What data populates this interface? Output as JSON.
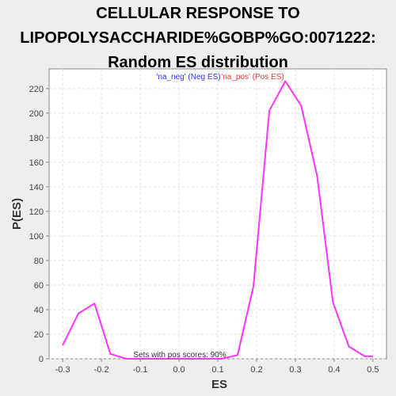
{
  "title_lines": [
    "CELLULAR RESPONSE TO",
    "LIPOPOLYSACCHARIDE%GOBP%GO:0071222:",
    "Random ES distribution"
  ],
  "chart_data": {
    "type": "line",
    "xlabel": "ES",
    "ylabel": "P(ES)",
    "xlim": [
      -0.335,
      0.535
    ],
    "ylim": [
      0,
      236
    ],
    "x_ticks": [
      -0.3,
      -0.2,
      -0.1,
      0.0,
      0.1,
      0.2,
      0.3,
      0.4,
      0.5
    ],
    "x_tick_labels": [
      "-0.3",
      "-0.2",
      "-0.1",
      "0.0",
      "0.1",
      "0.2",
      "0.3",
      "0.4",
      "0.5"
    ],
    "y_ticks": [
      0,
      20,
      40,
      60,
      80,
      100,
      120,
      140,
      160,
      180,
      200,
      220
    ],
    "y_tick_labels": [
      "0",
      "20",
      "40",
      "60",
      "80",
      "100",
      "120",
      "140",
      "160",
      "180",
      "200",
      "220"
    ],
    "grid": true,
    "legend_position": "top-center",
    "legend": [
      {
        "label": "'na_neg' (Neg ES)",
        "color": "#3333ff"
      },
      {
        "label": "'na_pos' (Pos ES)",
        "color": "#ff3333"
      }
    ],
    "annotation": "Sets with pos scores: 90%",
    "series": [
      {
        "color": "#ff33ff",
        "x": [
          -0.3,
          -0.259,
          -0.218,
          -0.177,
          -0.136,
          -0.095,
          -0.054,
          -0.013,
          0.028,
          0.069,
          0.11,
          0.151,
          0.192,
          0.233,
          0.274,
          0.315,
          0.356,
          0.397,
          0.438,
          0.479,
          0.5
        ],
        "y": [
          11,
          37,
          45,
          4,
          0,
          0,
          0,
          0,
          0,
          0,
          0,
          3,
          59,
          202,
          226,
          206,
          149,
          46,
          10,
          2,
          2
        ]
      }
    ]
  }
}
